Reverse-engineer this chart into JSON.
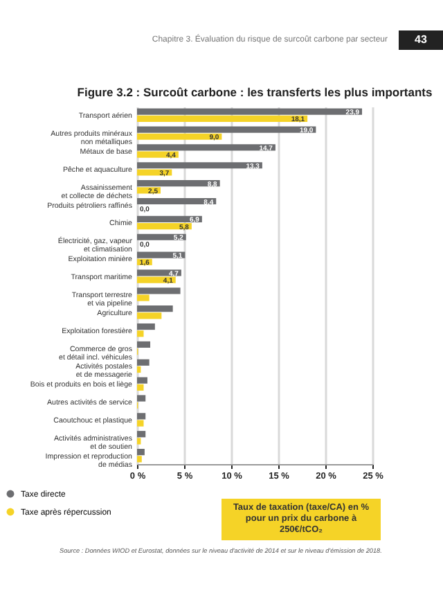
{
  "chart_data": {
    "type": "bar",
    "orientation": "horizontal",
    "title": "Figure 3.2 : Surcoût carbone : les transferts les plus importants",
    "xlabel": "Taux de taxation (taxe/CA) en % pour un prix du carbone à 250€/tCO₂",
    "categories": [
      "Transport aérien",
      "Autres produits minéraux\nnon métalliques",
      "Métaux de base",
      "Pêche et aquaculture",
      "Assainissement\net collecte de déchets",
      "Produits pétroliers raffinés",
      "Chimie",
      "Électricité, gaz, vapeur\net climatisation",
      "Exploitation minière",
      "Transport maritime",
      "Transport terrestre\net via pipeline",
      "Agriculture",
      "Exploitation forestière",
      "Commerce de gros\net détail incl. véhicules",
      "Activités postales\net de messagerie",
      "Bois et produits en bois et liège",
      "Autres activités de service",
      "Caoutchouc et plastique",
      "Activités administratives\net de soutien",
      "Impression et reproduction\nde médias"
    ],
    "series": [
      {
        "name": "Taxe directe",
        "color": "#6d6e71",
        "values": [
          23.9,
          19.0,
          14.7,
          13.3,
          8.8,
          8.4,
          6.9,
          5.2,
          5.1,
          4.7,
          4.6,
          3.8,
          1.9,
          1.4,
          1.3,
          1.1,
          0.9,
          0.9,
          0.9,
          0.8
        ],
        "value_labels": [
          "23,9",
          "19,0",
          "14,7",
          "13,3",
          "8,8",
          "8,4",
          "6,9",
          "5,2",
          "5,1",
          "4,7",
          null,
          null,
          null,
          null,
          null,
          null,
          null,
          null,
          null,
          null
        ]
      },
      {
        "name": "Taxe après répercussion",
        "color": "#f5d327",
        "values": [
          18.1,
          9.0,
          4.4,
          3.7,
          2.5,
          0.0,
          5.8,
          0.0,
          1.6,
          4.1,
          1.3,
          2.6,
          0.7,
          0.1,
          0.4,
          0.7,
          0.1,
          0.7,
          0.4,
          0.5
        ],
        "value_labels": [
          "18,1",
          "9,0",
          "4,4",
          "3,7",
          "2,5",
          "0,0",
          "5,8",
          "0,0",
          "1,6",
          "4,1",
          null,
          null,
          null,
          null,
          null,
          null,
          null,
          null,
          null,
          null
        ]
      }
    ],
    "xlim": [
      0,
      25
    ],
    "xticks": [
      {
        "value": 0,
        "label": "0 %"
      },
      {
        "value": 5,
        "label": "5 %"
      },
      {
        "value": 10,
        "label": "10 %"
      },
      {
        "value": 15,
        "label": "15 %"
      },
      {
        "value": 20,
        "label": "20 %"
      },
      {
        "value": 25,
        "label": "25 %"
      }
    ],
    "grid": "x",
    "legend": "bottom left",
    "annotations": [
      "Chapitre 3. Évaluation du risque de surcoût carbone par secteur",
      "43",
      "Source : Données WIOD et Eurostat, données sur le niveau d'activité de 2014 et sur le niveau d'émission de 2018."
    ]
  }
}
